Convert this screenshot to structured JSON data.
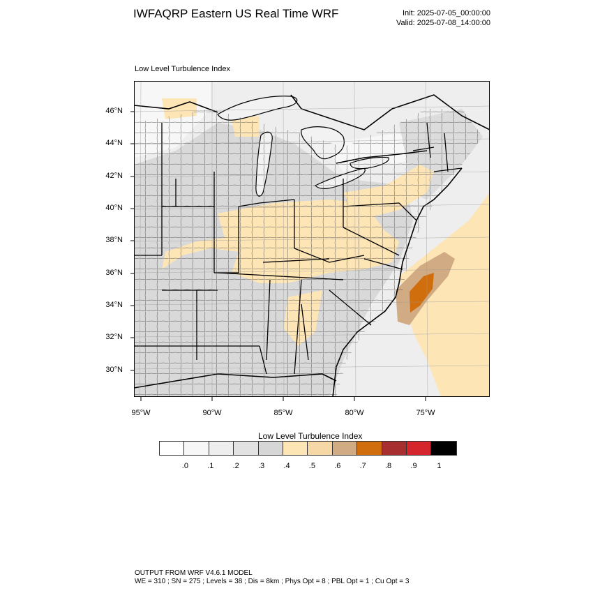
{
  "title": "IWFAQRP Eastern US Real Time WRF",
  "init": "Init: 2025-07-05_00:00:00",
  "valid": "Valid: 2025-07-08_14:00:00",
  "field_label": "Low Level Turbulence Index",
  "lat_ticks": [
    "46°N",
    "44°N",
    "42°N",
    "40°N",
    "38°N",
    "36°N",
    "34°N",
    "32°N",
    "30°N"
  ],
  "lon_ticks": [
    "95°W",
    "90°W",
    "85°W",
    "80°W",
    "75°W"
  ],
  "colorbar": {
    "title": "Low Level Turbulence Index",
    "colors": [
      "#ffffff",
      "#f7f7f7",
      "#eeeeee",
      "#e2e2e2",
      "#d6d6d6",
      "#fde5b6",
      "#f6d7a6",
      "#d1ab84",
      "#d06e0e",
      "#a72f2f",
      "#d4262c",
      "#000000"
    ],
    "labels": [
      ".0",
      ".1",
      ".2",
      ".3",
      ".4",
      ".5",
      ".6",
      ".7",
      ".8",
      ".9",
      "1"
    ]
  },
  "footer": {
    "line1": "OUTPUT FROM WRF V4.6.1 MODEL",
    "line2": "WE = 310 ; SN = 275 ; Levels = 38 ; Dis = 8km ; Phys Opt = 8 ; PBL Opt = 1 ; Cu Opt = 3"
  }
}
